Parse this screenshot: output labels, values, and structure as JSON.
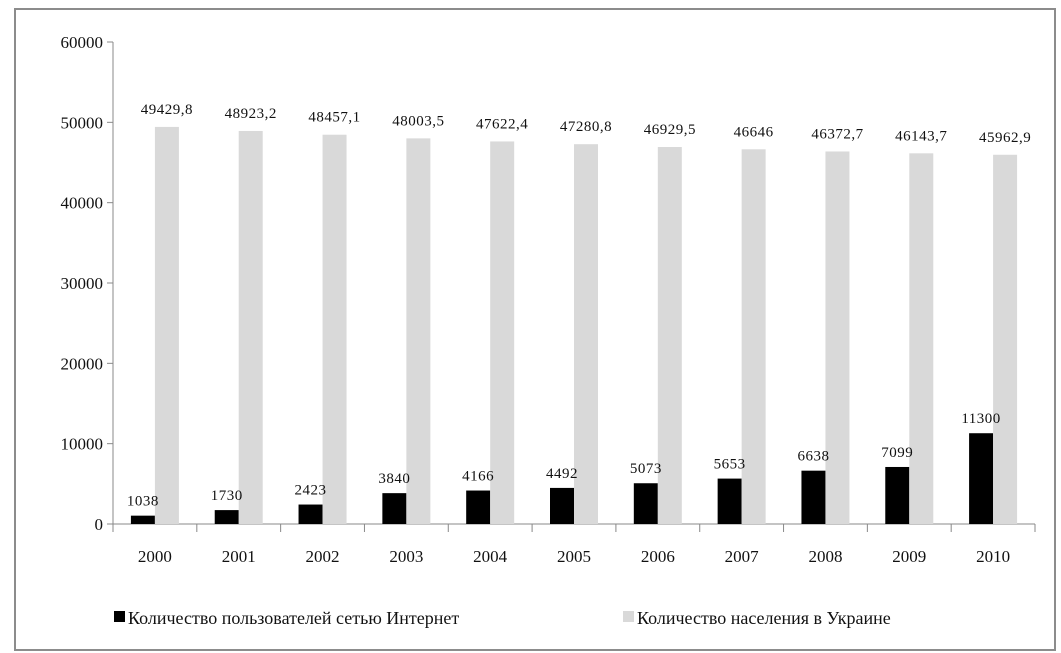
{
  "chart_data": {
    "type": "bar",
    "categories": [
      "2000",
      "2001",
      "2002",
      "2003",
      "2004",
      "2005",
      "2006",
      "2007",
      "2008",
      "2009",
      "2010"
    ],
    "series": [
      {
        "name": "Количество пользователей сетью Интернет",
        "color": "#000000",
        "values": [
          1038,
          1730,
          2423,
          3840,
          4166,
          4492,
          5073,
          5653,
          6638,
          7099,
          11300
        ],
        "labels": [
          "1038",
          "1730",
          "2423",
          "3840",
          "4166",
          "4492",
          "5073",
          "5653",
          "6638",
          "7099",
          "11300"
        ]
      },
      {
        "name": "Количество населения в Украине",
        "color": "#d9d9d9",
        "values": [
          49429.8,
          48923.2,
          48457.1,
          48003.5,
          47622.4,
          47280.8,
          46929.5,
          46646,
          46372.7,
          46143.7,
          45962.9
        ],
        "labels": [
          "49429,8",
          "48923,2",
          "48457,1",
          "48003,5",
          "47622,4",
          "47280,8",
          "46929,5",
          "46646",
          "46372,7",
          "46143,7",
          "45962,9"
        ]
      }
    ],
    "y_ticks": [
      "0",
      "10000",
      "20000",
      "30000",
      "40000",
      "50000",
      "60000"
    ],
    "ylim": [
      0,
      60000
    ],
    "grid": false,
    "legend_position": "bottom"
  }
}
